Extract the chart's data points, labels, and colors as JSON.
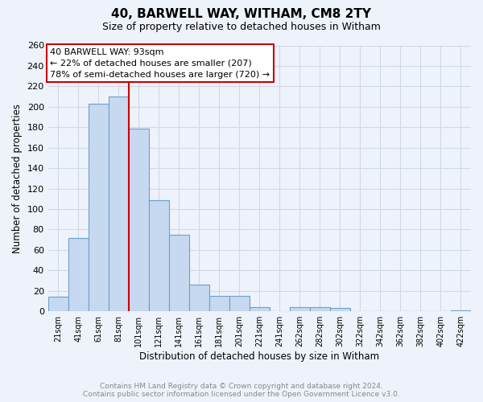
{
  "title": "40, BARWELL WAY, WITHAM, CM8 2TY",
  "subtitle": "Size of property relative to detached houses in Witham",
  "xlabel": "Distribution of detached houses by size in Witham",
  "ylabel": "Number of detached properties",
  "bar_labels": [
    "21sqm",
    "41sqm",
    "61sqm",
    "81sqm",
    "101sqm",
    "121sqm",
    "141sqm",
    "161sqm",
    "181sqm",
    "201sqm",
    "221sqm",
    "241sqm",
    "262sqm",
    "282sqm",
    "302sqm",
    "322sqm",
    "342sqm",
    "362sqm",
    "382sqm",
    "402sqm",
    "422sqm"
  ],
  "bar_values": [
    14,
    72,
    203,
    210,
    179,
    109,
    75,
    26,
    15,
    15,
    4,
    0,
    4,
    4,
    3,
    0,
    0,
    0,
    0,
    0,
    1
  ],
  "bar_color": "#c6d9f1",
  "bar_edge_color": "#6ca0cc",
  "vline_color": "#cc0000",
  "vline_x": 3.5,
  "annotation_title": "40 BARWELL WAY: 93sqm",
  "annotation_line1": "← 22% of detached houses are smaller (207)",
  "annotation_line2": "78% of semi-detached houses are larger (720) →",
  "annotation_box_color": "white",
  "annotation_box_edge_color": "#cc0000",
  "footer_line1": "Contains HM Land Registry data © Crown copyright and database right 2024.",
  "footer_line2": "Contains public sector information licensed under the Open Government Licence v3.0.",
  "ylim": [
    0,
    260
  ],
  "yticks": [
    0,
    20,
    40,
    60,
    80,
    100,
    120,
    140,
    160,
    180,
    200,
    220,
    240,
    260
  ],
  "background_color": "#eef2fa",
  "grid_color": "#d0d8e8",
  "title_fontsize": 11,
  "subtitle_fontsize": 9
}
